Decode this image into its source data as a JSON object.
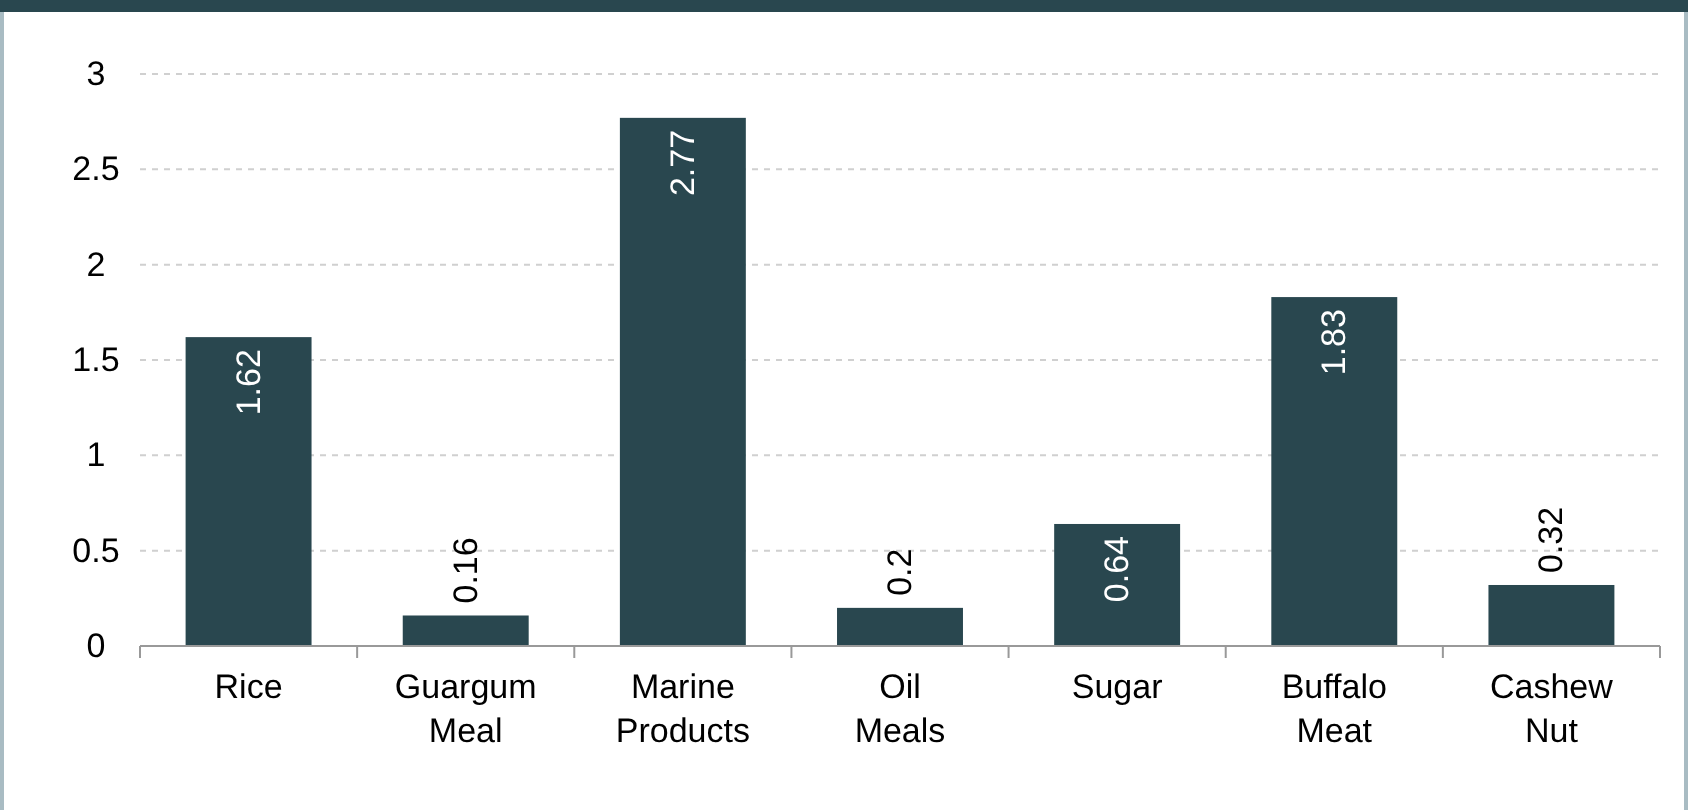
{
  "chart_data": {
    "type": "bar",
    "categories": [
      "Rice",
      "Guargum Meal",
      "Marine Products",
      "Oil Meals",
      "Sugar",
      "Buffalo Meat",
      "Cashew Nut"
    ],
    "values": [
      1.62,
      0.16,
      2.77,
      0.2,
      0.64,
      1.83,
      0.32
    ],
    "color": "#29474f",
    "ylim": [
      0,
      3
    ],
    "yticks": [
      0,
      0.5,
      1,
      1.5,
      2,
      2.5,
      3
    ],
    "grid": "y",
    "data_labels": true
  }
}
